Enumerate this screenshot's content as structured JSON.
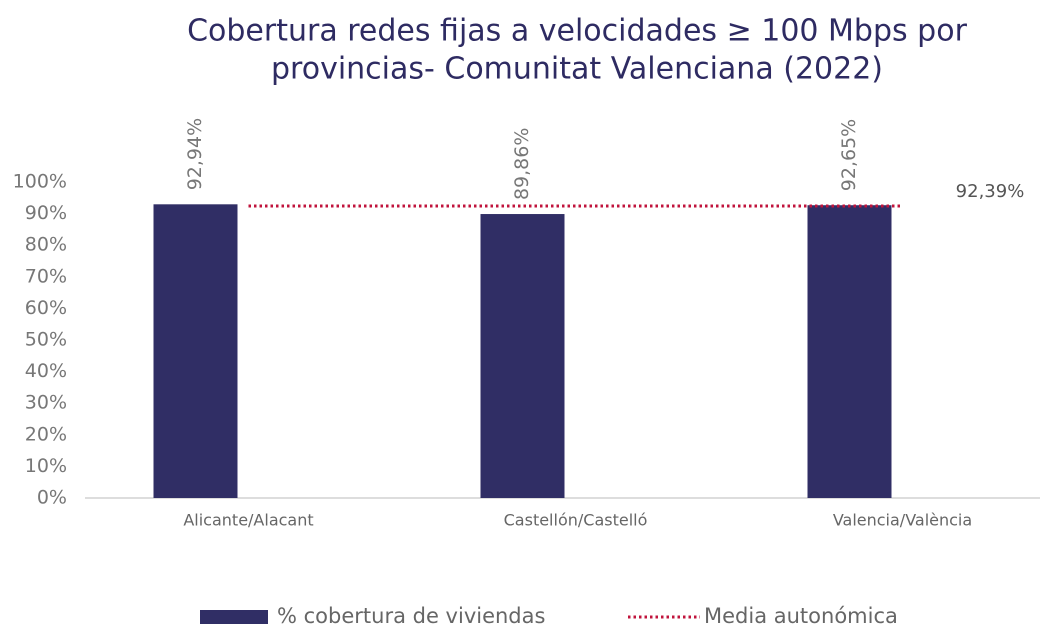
{
  "chart_data": {
    "type": "bar",
    "title": [
      "Cobertura redes fijas a velocidades ≥ 100 Mbps por",
      "provincias- Comunitat Valenciana (2022)"
    ],
    "categories": [
      "Alicante/Alacant",
      "Castellón/Castelló",
      "Valencia/València"
    ],
    "series": [
      {
        "name": "% cobertura de viviendas",
        "color": "#302e65",
        "values": [
          92.94,
          89.86,
          92.65
        ],
        "value_labels": [
          "92,94%",
          "89,86%",
          "92,65%"
        ]
      }
    ],
    "average": {
      "name": "Media autonómica",
      "color": "#c0143c",
      "value": 92.39,
      "value_label": "92,39%"
    },
    "ylim": [
      0,
      100
    ],
    "yticks": [
      {
        "value": 0,
        "label": "0%"
      },
      {
        "value": 10,
        "label": "10%"
      },
      {
        "value": 20,
        "label": "20%"
      },
      {
        "value": 30,
        "label": "30%"
      },
      {
        "value": 40,
        "label": "40%"
      },
      {
        "value": 50,
        "label": "50%"
      },
      {
        "value": 60,
        "label": "60%"
      },
      {
        "value": 70,
        "label": "70%"
      },
      {
        "value": 80,
        "label": "80%"
      },
      {
        "value": 90,
        "label": "90%"
      },
      {
        "value": 100,
        "label": "100%"
      }
    ]
  }
}
